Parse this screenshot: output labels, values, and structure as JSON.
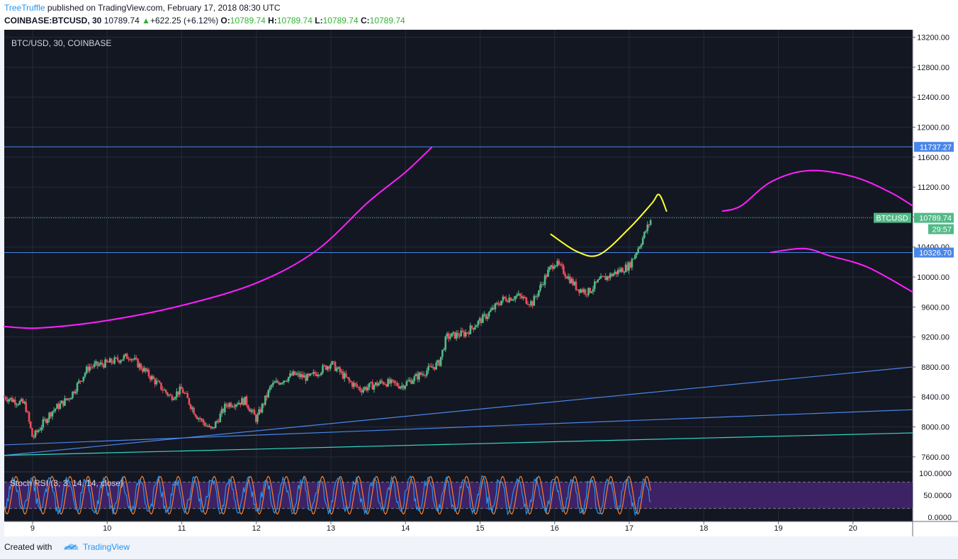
{
  "header": {
    "author": "TreeTruffle",
    "published_text": "published on TradingView.com, February 17, 2018 08:30 UTC",
    "symbol": "COINBASE:BTCUSD, 30",
    "last": "10789.74",
    "change_arrow": "▲",
    "change": "+622.25 (+6.12%)",
    "o_label": "O:",
    "o_value": "10789.74",
    "h_label": "H:",
    "h_value": "10789.74",
    "l_label": "L:",
    "l_value": "10789.74",
    "c_label": "C:",
    "c_value": "10789.74"
  },
  "footer": {
    "created_with": "Created with",
    "brand": "TradingView"
  },
  "colors": {
    "background": "#131722",
    "candle_up": "#53b987",
    "candle_down": "#eb4d5c",
    "magenta": "#ff1fff",
    "yellow": "#ffff33",
    "blue_line": "#4a86e8",
    "teal_line": "#33d9c7",
    "rsi_k": "#2196f3",
    "rsi_d": "#ff7f2a",
    "rsi_band": "#3d2366"
  },
  "chart_data": {
    "type": "candlestick",
    "title": "BTC/USD, 30, COINBASE",
    "interval": "30",
    "x_tick_labels": [
      "9",
      "10",
      "11",
      "12",
      "13",
      "14",
      "15",
      "16",
      "17",
      "18",
      "19",
      "20"
    ],
    "x_range_days": [
      8.62,
      20.8
    ],
    "y_axis_labels": [
      "13200.00",
      "12800.00",
      "12400.00",
      "12000.00",
      "11600.00",
      "11200.00",
      "10800.00",
      "10400.00",
      "10000.00",
      "9600.00",
      "9200.00",
      "8800.00",
      "8400.00",
      "8000.00",
      "7600.00"
    ],
    "ylim": [
      7400,
      13300
    ],
    "price_waypoints": [
      [
        8.62,
        8400
      ],
      [
        8.9,
        8300
      ],
      [
        9.0,
        7850
      ],
      [
        9.25,
        8200
      ],
      [
        9.5,
        8400
      ],
      [
        9.75,
        8800
      ],
      [
        10.0,
        8850
      ],
      [
        10.3,
        8950
      ],
      [
        10.6,
        8650
      ],
      [
        10.85,
        8400
      ],
      [
        11.0,
        8500
      ],
      [
        11.2,
        8150
      ],
      [
        11.4,
        7950
      ],
      [
        11.6,
        8300
      ],
      [
        11.85,
        8350
      ],
      [
        12.0,
        8100
      ],
      [
        12.2,
        8550
      ],
      [
        12.5,
        8700
      ],
      [
        12.7,
        8650
      ],
      [
        13.0,
        8850
      ],
      [
        13.25,
        8600
      ],
      [
        13.4,
        8500
      ],
      [
        13.7,
        8600
      ],
      [
        13.95,
        8550
      ],
      [
        14.2,
        8700
      ],
      [
        14.45,
        8850
      ],
      [
        14.55,
        9200
      ],
      [
        14.8,
        9250
      ],
      [
        15.1,
        9500
      ],
      [
        15.3,
        9700
      ],
      [
        15.5,
        9750
      ],
      [
        15.7,
        9650
      ],
      [
        15.9,
        10050
      ],
      [
        16.0,
        10200
      ],
      [
        16.1,
        10100
      ],
      [
        16.3,
        9850
      ],
      [
        16.45,
        9800
      ],
      [
        16.6,
        9950
      ],
      [
        16.8,
        10050
      ],
      [
        17.0,
        10150
      ],
      [
        17.15,
        10450
      ],
      [
        17.3,
        10789.74
      ]
    ],
    "current_price": "10789.74",
    "countdown": "29:57",
    "symbol_tag": "BTCUSD",
    "horizontal_levels": [
      "11737.27",
      "10326.70"
    ],
    "support_lines": [
      {
        "name": "blue-upper",
        "from": [
          8.62,
          7620
        ],
        "to": [
          20.8,
          8800
        ]
      },
      {
        "name": "blue-lower",
        "from": [
          8.62,
          7760
        ],
        "to": [
          20.8,
          8230
        ]
      },
      {
        "name": "teal",
        "from": [
          8.62,
          7620
        ],
        "to": [
          20.8,
          7920
        ]
      }
    ],
    "annotations": [
      {
        "name": "magenta-arc-left",
        "color": "magenta",
        "points": [
          [
            8.62,
            9340
          ],
          [
            9.1,
            9320
          ],
          [
            10.0,
            9420
          ],
          [
            11.0,
            9620
          ],
          [
            12.0,
            9920
          ],
          [
            12.8,
            10350
          ],
          [
            13.5,
            11000
          ],
          [
            14.0,
            11400
          ],
          [
            14.35,
            11730
          ]
        ]
      },
      {
        "name": "yellow-curve",
        "color": "yellow",
        "points": [
          [
            15.95,
            10570
          ],
          [
            16.3,
            10340
          ],
          [
            16.6,
            10300
          ],
          [
            17.0,
            10650
          ],
          [
            17.3,
            10980
          ],
          [
            17.4,
            11100
          ],
          [
            17.5,
            10880
          ]
        ]
      },
      {
        "name": "magenta-arc-upper-right",
        "color": "magenta",
        "points": [
          [
            18.25,
            10880
          ],
          [
            18.5,
            10950
          ],
          [
            18.9,
            11270
          ],
          [
            19.4,
            11420
          ],
          [
            20.0,
            11340
          ],
          [
            20.5,
            11130
          ],
          [
            20.8,
            10950
          ]
        ]
      },
      {
        "name": "magenta-arc-lower-right",
        "color": "magenta",
        "points": [
          [
            18.9,
            10330
          ],
          [
            19.35,
            10380
          ],
          [
            19.7,
            10280
          ],
          [
            20.2,
            10130
          ],
          [
            20.8,
            9800
          ]
        ]
      }
    ],
    "stoch_rsi": {
      "label": "Stoch RSI (3, 3, 14, 14, close)",
      "axis_labels": [
        "100.0000",
        "50.0000",
        "0.0000"
      ],
      "upper_band": 80,
      "lower_band": 20,
      "ylim": [
        0,
        100
      ]
    }
  }
}
